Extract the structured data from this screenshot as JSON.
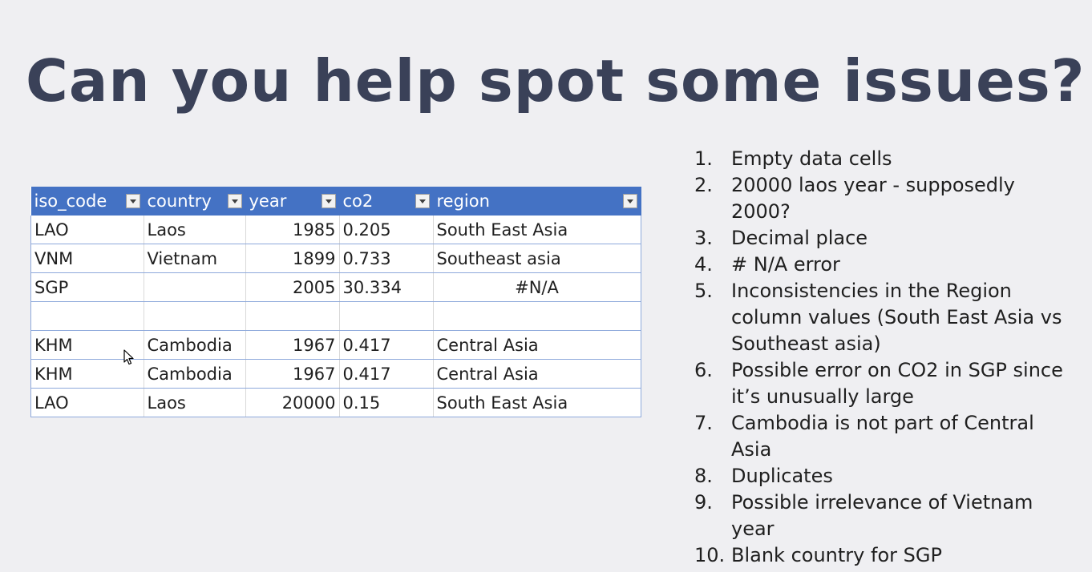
{
  "title": "Can you help spot some issues?",
  "table": {
    "headers": [
      "iso_code",
      "country",
      "year",
      "co2",
      "region"
    ],
    "rows": [
      [
        "LAO",
        "Laos",
        "1985",
        "0.205",
        "South East Asia"
      ],
      [
        "VNM",
        "Vietnam",
        "1899",
        "0.733",
        "Southeast asia"
      ],
      [
        "SGP",
        "",
        "2005",
        "30.334",
        "#N/A"
      ],
      [
        "",
        "",
        "",
        "",
        ""
      ],
      [
        "KHM",
        "Cambodia",
        "1967",
        "0.417",
        "Central Asia"
      ],
      [
        "KHM",
        "Cambodia",
        "1967",
        "0.417",
        "Central Asia"
      ],
      [
        "LAO",
        "Laos",
        "20000",
        "0.15",
        "South East Asia"
      ]
    ]
  },
  "issues": [
    {
      "num": "1.",
      "text": "Empty data cells"
    },
    {
      "num": "2.",
      "text": "20000 laos year - supposedly 2000?"
    },
    {
      "num": "3.",
      "text": "Decimal place"
    },
    {
      "num": "4.",
      "text": "# N/A error"
    },
    {
      "num": "5.",
      "text": "Inconsistencies in the Region column values (South East Asia vs Southeast asia)"
    },
    {
      "num": "6.",
      "text": "Possible error on CO2 in SGP since it’s unusually large"
    },
    {
      "num": "7.",
      "text": "Cambodia is not part of Central Asia"
    },
    {
      "num": "8.",
      "text": "Duplicates"
    },
    {
      "num": "9.",
      "text": "Possible irrelevance of Vietnam year"
    },
    {
      "num": "10.",
      "text": "Blank country for SGP"
    }
  ],
  "colors": {
    "title": "#3a4158",
    "table_header": "#4472c4",
    "background": "#efeff2"
  },
  "icons": {
    "filter": "filter-dropdown-icon",
    "cursor": "mouse-pointer-icon"
  }
}
